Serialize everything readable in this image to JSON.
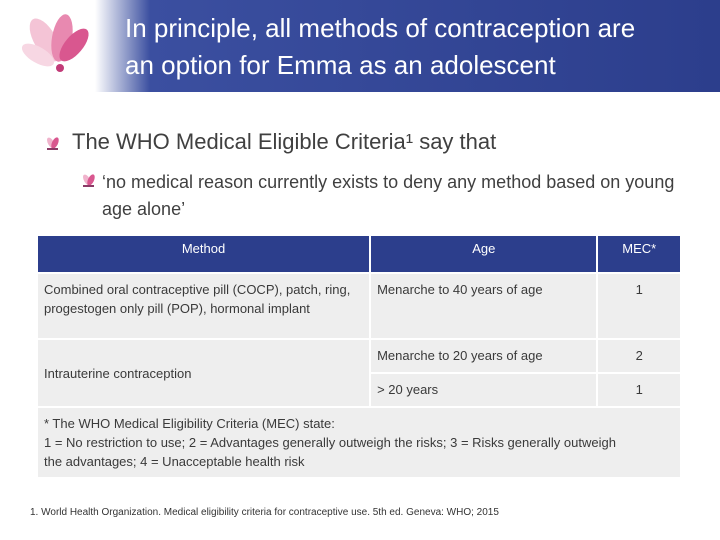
{
  "header": {
    "title_line1": "In principle, all methods of contraception are",
    "title_line2": "an option for Emma as an adolescent"
  },
  "bullets": {
    "level1": "The WHO Medical Eligible Criteria¹ say that",
    "level2": "‘no medical reason currently exists to deny any method based on young age alone’"
  },
  "table": {
    "headers": {
      "method": "Method",
      "age": "Age",
      "mec": "MEC*"
    },
    "rows": [
      {
        "method": "Combined oral contraceptive pill (COCP), patch, ring, progestogen only pill (POP), hormonal implant",
        "age": "Menarche to 40 years of age",
        "mec": "1"
      },
      {
        "method": "Intrauterine contraception",
        "age": "Menarche to 20 years of age",
        "mec": "2"
      },
      {
        "method": "",
        "age": "> 20 years",
        "mec": "1"
      }
    ],
    "footnote_line1": "* The WHO Medical Eligibility Criteria (MEC) state:",
    "footnote_line2": "1 = No restriction to use; 2 = Advantages generally outweigh the risks; 3 = Risks generally outweigh the advantages; 4 = Unacceptable health risk"
  },
  "reference": "1. World Health Organization. Medical eligibility criteria for contraceptive use. 5th ed. Geneva: WHO; 2015",
  "colors": {
    "header_blue": "#2c3e8c",
    "table_cell": "#eeeeee",
    "logo_pink": "#d9578f"
  },
  "icons": {
    "logo": "lotus-flower-logo",
    "bullet": "flower-bullet-icon"
  }
}
